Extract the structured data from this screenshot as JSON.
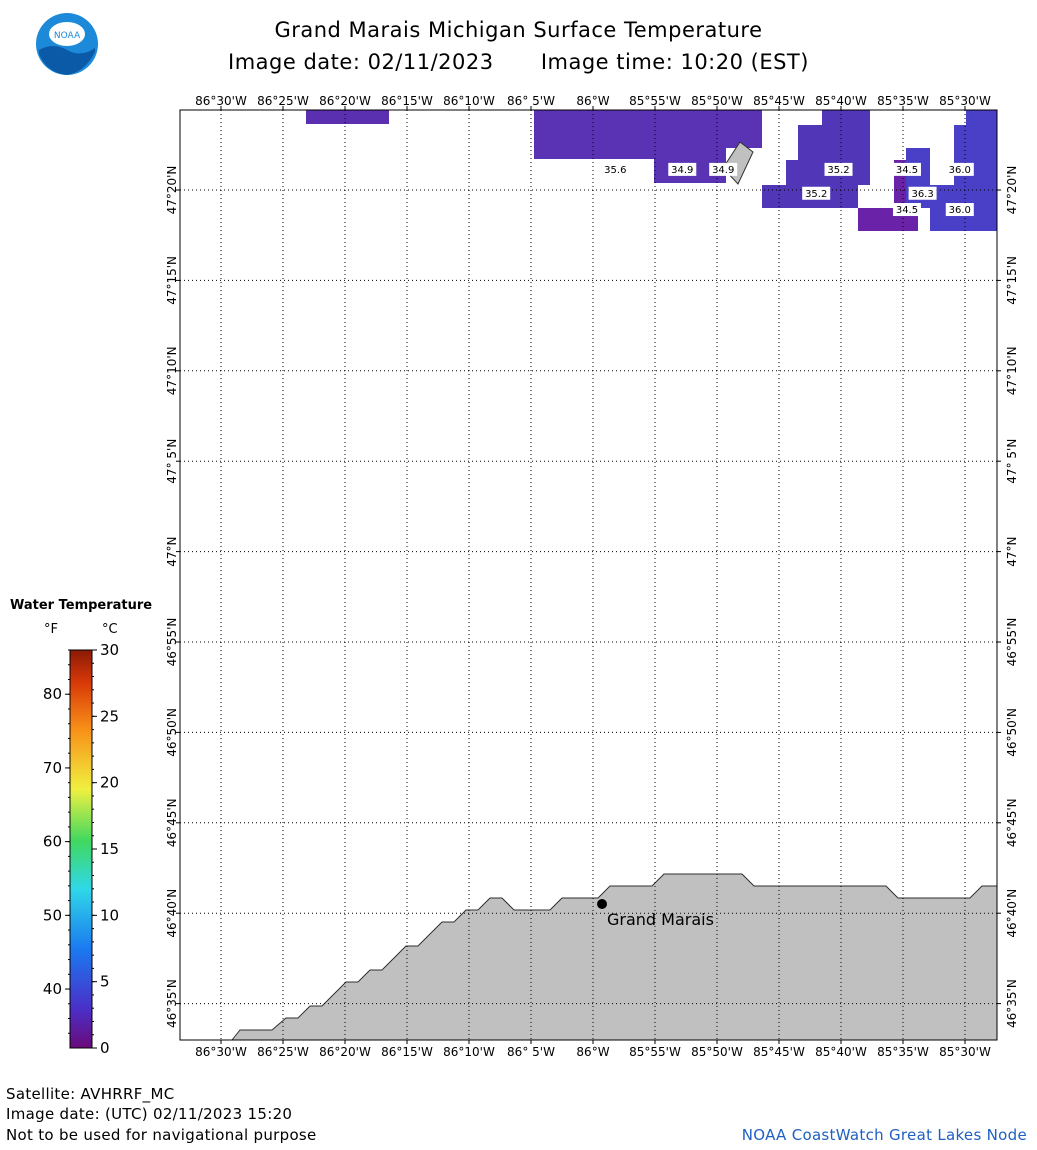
{
  "title": "Grand Marais Michigan Surface Temperature",
  "image_date": "Image date: 02/11/2023",
  "image_time": "Image time: 10:20 (EST)",
  "logo_text": "NOAA",
  "longitude_labels": [
    "86°30'W",
    "86°25'W",
    "86°20'W",
    "86°15'W",
    "86°10'W",
    "86° 5'W",
    "86°W",
    "85°55'W",
    "85°50'W",
    "85°45'W",
    "85°40'W",
    "85°35'W",
    "85°30'W"
  ],
  "latitude_labels": [
    "47°20'N",
    "47°15'N",
    "47°10'N",
    "47° 5'N",
    "47°N",
    "46°55'N",
    "46°50'N",
    "46°45'N",
    "46°40'N",
    "46°35'N"
  ],
  "place_label": "Grand Marais",
  "temperature_readings": [
    {
      "value": "35.6",
      "lon": -85.97,
      "lat": 47.348
    },
    {
      "value": "34.9",
      "lon": -85.88,
      "lat": 47.348
    },
    {
      "value": "34.9",
      "lon": -85.825,
      "lat": 47.348
    },
    {
      "value": "35.2",
      "lon": -85.67,
      "lat": 47.348
    },
    {
      "value": "35.2",
      "lon": -85.7,
      "lat": 47.326
    },
    {
      "value": "34.5",
      "lon": -85.578,
      "lat": 47.348
    },
    {
      "value": "36.0",
      "lon": -85.507,
      "lat": 47.348
    },
    {
      "value": "36.3",
      "lon": -85.557,
      "lat": 47.326
    },
    {
      "value": "34.5",
      "lon": -85.578,
      "lat": 47.311
    },
    {
      "value": "36.0",
      "lon": -85.507,
      "lat": 47.311
    }
  ],
  "legend": {
    "title": "Water Temperature",
    "unit_f": "°F",
    "unit_c": "°C",
    "f_ticks": [
      "80",
      "70",
      "60",
      "50",
      "40"
    ],
    "c_ticks": [
      "30",
      "25",
      "20",
      "15",
      "10",
      "5",
      "0"
    ]
  },
  "footer": {
    "satellite": "Satellite: AVHRRF_MC",
    "utc_date": "Image date: (UTC) 02/11/2023  15:20",
    "disclaimer": "Not to be used for navigational purpose",
    "credit": "NOAA CoastWatch Great Lakes Node"
  },
  "colors": {
    "land": "#c0c0c0",
    "water_cold": "#5a2fb0",
    "water_mid": "#4b3cc0",
    "water_warm": "#4a40c8",
    "logo_blue": "#1c8ad8",
    "credit": "#2060c0"
  }
}
